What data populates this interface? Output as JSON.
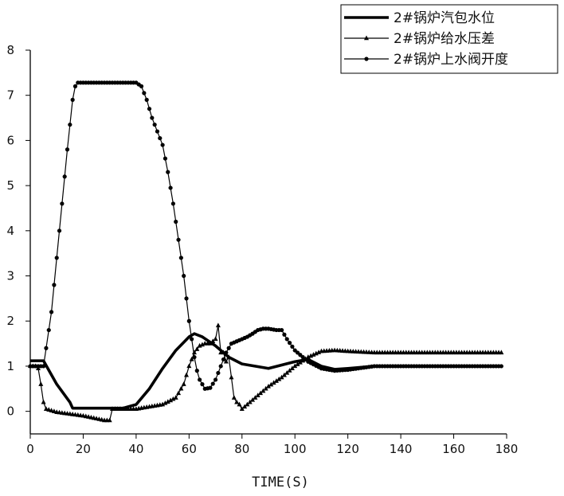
{
  "chart_data": {
    "type": "line",
    "title": "",
    "xlabel": "TIME(S)",
    "ylabel": "",
    "xlim": [
      0,
      180
    ],
    "ylim": [
      -0.5,
      8
    ],
    "x_ticks": [
      0,
      20,
      40,
      60,
      80,
      100,
      120,
      140,
      160,
      180
    ],
    "y_ticks": [
      0,
      1,
      2,
      3,
      4,
      5,
      6,
      7,
      8
    ],
    "grid": false,
    "legend_position": "top-right",
    "series": [
      {
        "name": "2#锅炉汽包水位",
        "style": "thick-line",
        "x": [
          0,
          5,
          10,
          15,
          16,
          20,
          30,
          35,
          40,
          45,
          50,
          55,
          60,
          62,
          65,
          70,
          75,
          80,
          90,
          100,
          105,
          110,
          115,
          120,
          130,
          140,
          160,
          178
        ],
        "y": [
          1.12,
          1.12,
          0.6,
          0.2,
          0.07,
          0.07,
          0.07,
          0.07,
          0.15,
          0.5,
          0.95,
          1.35,
          1.65,
          1.72,
          1.65,
          1.45,
          1.2,
          1.05,
          0.95,
          1.1,
          1.15,
          1.0,
          0.93,
          0.95,
          1.0,
          1.0,
          1.0,
          1.0
        ]
      },
      {
        "name": "2#锅炉给水压差",
        "style": "line-triangle-markers",
        "x": [
          0,
          2,
          3,
          4,
          5,
          6,
          10,
          20,
          28,
          30,
          31,
          40,
          50,
          55,
          58,
          60,
          62,
          64,
          66,
          68,
          70,
          71,
          72,
          73,
          74,
          75,
          76,
          77,
          78,
          79,
          80,
          82,
          85,
          90,
          95,
          100,
          105,
          110,
          115,
          120,
          130,
          140,
          160,
          178
        ],
        "y": [
          1.0,
          1.0,
          0.95,
          0.6,
          0.2,
          0.05,
          -0.02,
          -0.1,
          -0.2,
          -0.2,
          0.05,
          0.05,
          0.15,
          0.3,
          0.6,
          1.0,
          1.3,
          1.45,
          1.5,
          1.5,
          1.6,
          1.9,
          1.3,
          1.3,
          1.1,
          1.2,
          0.75,
          0.3,
          0.2,
          0.15,
          0.05,
          0.15,
          0.3,
          0.55,
          0.75,
          1.0,
          1.2,
          1.33,
          1.35,
          1.33,
          1.3,
          1.3,
          1.3,
          1.3
        ]
      },
      {
        "name": "2#锅炉上水阀开度",
        "style": "line-circle-markers",
        "x": [
          0,
          5,
          8,
          10,
          12,
          14,
          16,
          17,
          18,
          20,
          30,
          40,
          42,
          44,
          46,
          48,
          50,
          52,
          54,
          56,
          58,
          60,
          61,
          62,
          63,
          64,
          66,
          68,
          70,
          72,
          74,
          76,
          78,
          80,
          82,
          84,
          86,
          88,
          90,
          93,
          95,
          97,
          100,
          105,
          110,
          115,
          120,
          130,
          140,
          160,
          178
        ],
        "y": [
          1.0,
          1.0,
          2.2,
          3.4,
          4.6,
          5.8,
          6.9,
          7.2,
          7.28,
          7.28,
          7.28,
          7.28,
          7.2,
          6.9,
          6.5,
          6.2,
          5.9,
          5.3,
          4.6,
          3.8,
          3.0,
          2.0,
          1.6,
          1.2,
          0.9,
          0.7,
          0.5,
          0.52,
          0.7,
          1.0,
          1.3,
          1.5,
          1.55,
          1.6,
          1.65,
          1.72,
          1.8,
          1.83,
          1.83,
          1.8,
          1.8,
          1.6,
          1.35,
          1.1,
          0.95,
          0.9,
          0.92,
          1.0,
          1.0,
          1.0,
          1.0
        ]
      }
    ]
  }
}
